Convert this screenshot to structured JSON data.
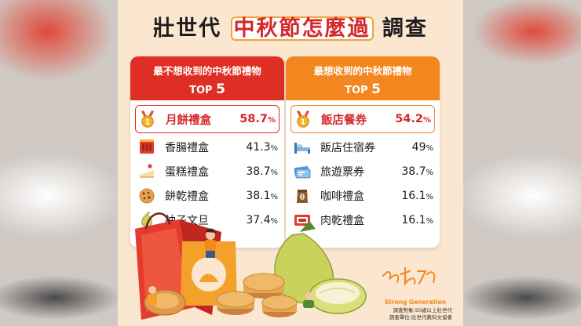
{
  "poster": {
    "title_prefix": "壯世代",
    "title_highlight": "中秋節怎麼過",
    "title_suffix": "調查"
  },
  "chart_data": [
    {
      "type": "table",
      "title": "最不想收到的中秋節禮物",
      "subtitle_prefix": "TOP",
      "subtitle_num": "5",
      "accent": "#df2f24",
      "items": [
        {
          "label": "月餅禮盒",
          "value": "58.7",
          "icon": "medal-icon"
        },
        {
          "label": "香腸禮盒",
          "value": "41.3",
          "icon": "sausage-icon"
        },
        {
          "label": "蛋糕禮盒",
          "value": "38.7",
          "icon": "cake-icon"
        },
        {
          "label": "餅乾禮盒",
          "value": "38.1",
          "icon": "cookie-icon"
        },
        {
          "label": "柚子文旦",
          "value": "37.4",
          "icon": "pomelo-icon"
        }
      ],
      "values": [
        58.7,
        41.3,
        38.7,
        38.1,
        37.4
      ],
      "unit": "%"
    },
    {
      "type": "table",
      "title": "最想收到的中秋節禮物",
      "subtitle_prefix": "TOP",
      "subtitle_num": "5",
      "accent": "#f2871f",
      "items": [
        {
          "label": "飯店餐券",
          "value": "54.2",
          "icon": "medal-icon"
        },
        {
          "label": "飯店住宿券",
          "value": "49",
          "icon": "bed-icon"
        },
        {
          "label": "旅遊票券",
          "value": "38.7",
          "icon": "ticket-icon"
        },
        {
          "label": "咖啡禮盒",
          "value": "16.1",
          "icon": "coffee-bag-icon"
        },
        {
          "label": "肉乾禮盒",
          "value": "16.1",
          "icon": "jerky-box-icon"
        }
      ],
      "values": [
        54.2,
        49,
        38.7,
        16.1,
        16.1
      ],
      "unit": "%"
    }
  ],
  "credit": {
    "brand_en": "Strong Generation",
    "line1": "調查對象:50歲以上壯世代",
    "line2": "調查單位:壯世代教科文協會"
  },
  "colors": {
    "poster_bg": "#fbe6cf",
    "red": "#df2f24",
    "orange": "#f2871f"
  }
}
